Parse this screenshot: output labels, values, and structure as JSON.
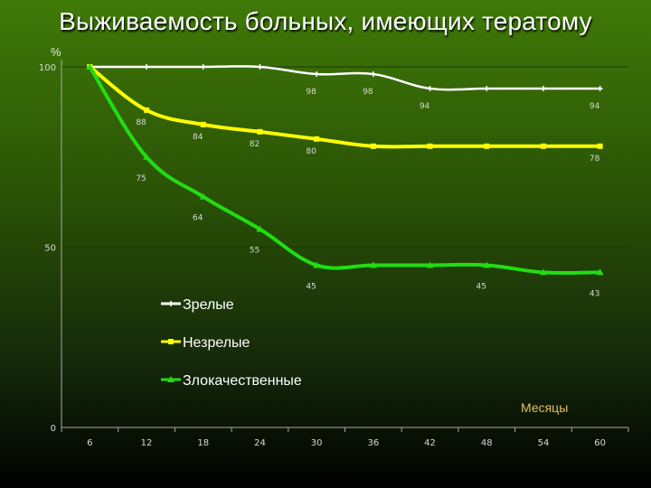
{
  "title": "Выживаемость больных, имеющих тератому",
  "chart_data": {
    "type": "line",
    "title": "Выживаемость больных, имеющих тератому",
    "ylabel": "%",
    "xlabel": "Месяцы",
    "ylim": [
      0,
      100
    ],
    "yticks": [
      "0",
      "50",
      "100"
    ],
    "categories": [
      "6",
      "12",
      "18",
      "24",
      "30",
      "36",
      "42",
      "48",
      "54",
      "60"
    ],
    "grid": true,
    "legend_position": "bottom-left",
    "series": [
      {
        "name": "Зрелые",
        "color": "#ffffff",
        "marker": "plus",
        "values": [
          100,
          100,
          100,
          100,
          98,
          98,
          94,
          94,
          94,
          94
        ],
        "labels": [
          "",
          "",
          "",
          "",
          "98",
          "98",
          "94",
          "",
          "",
          "94"
        ]
      },
      {
        "name": "Незрелые",
        "color": "#ffff00",
        "marker": "square",
        "values": [
          100,
          88,
          84,
          82,
          80,
          78,
          78,
          78,
          78,
          78
        ],
        "labels": [
          "",
          "88",
          "84",
          "82",
          "80",
          "",
          "",
          "",
          "",
          "78"
        ]
      },
      {
        "name": "Злокачественные",
        "color": "#22dd11",
        "marker": "triangle",
        "values": [
          100,
          75,
          64,
          55,
          45,
          45,
          45,
          45,
          43,
          43
        ],
        "labels": [
          "",
          "75",
          "64",
          "55",
          "45",
          "",
          "",
          "45",
          "",
          "43"
        ]
      }
    ]
  }
}
